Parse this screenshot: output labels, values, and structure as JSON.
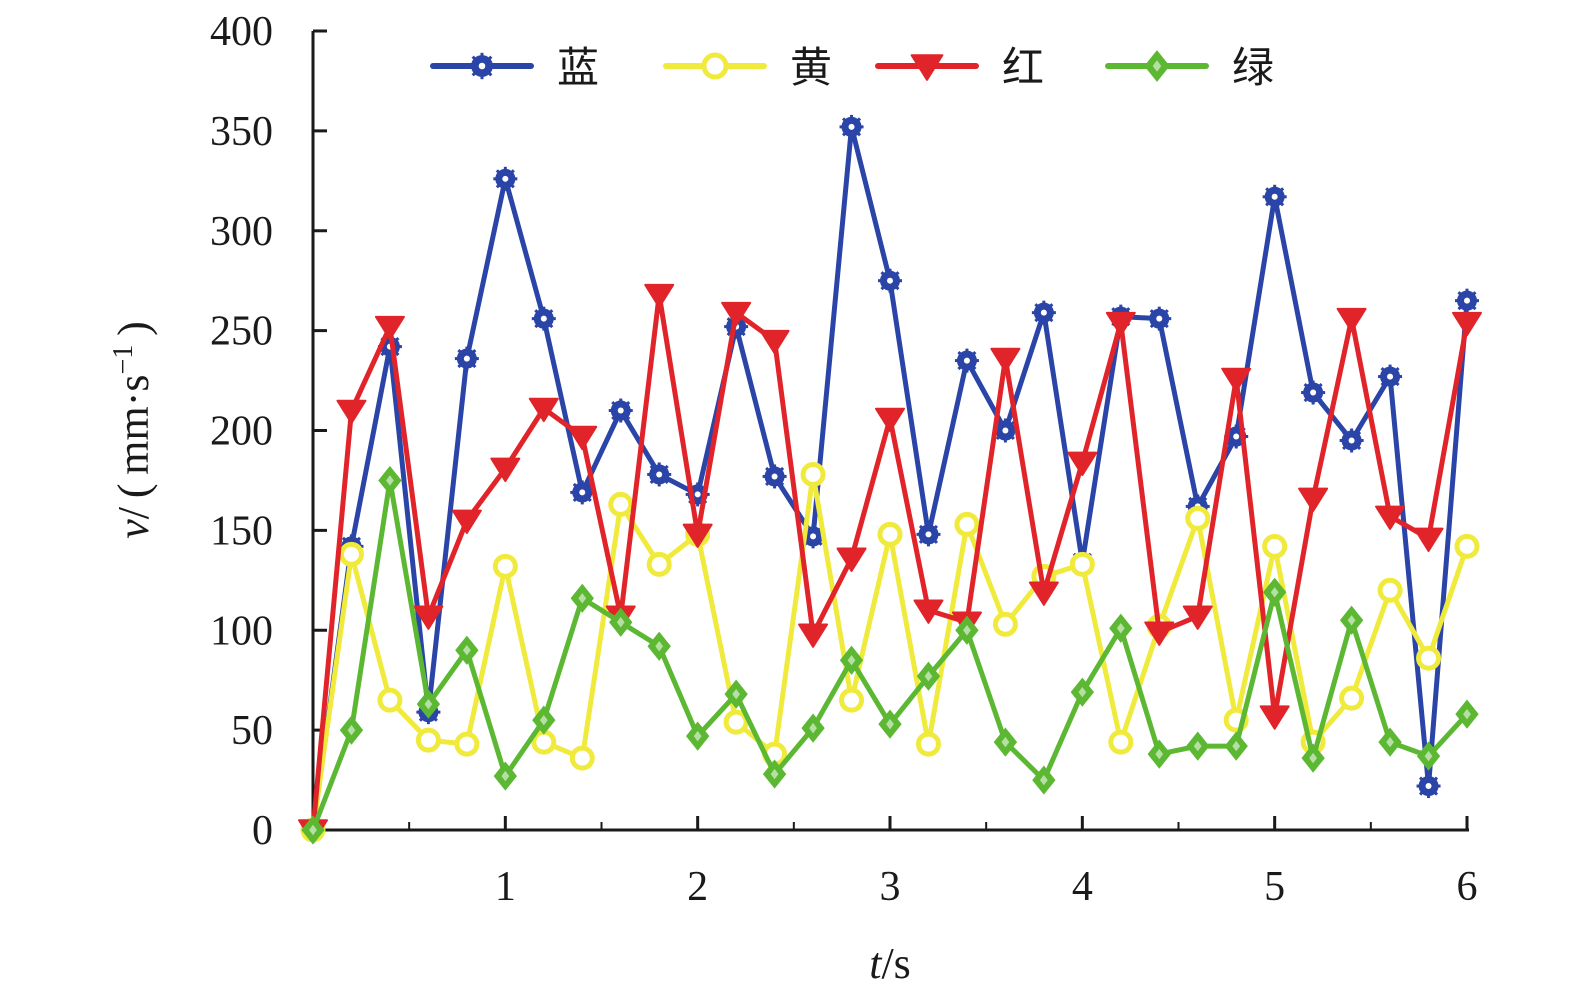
{
  "chart_data": {
    "type": "line",
    "xlabel_var": "t",
    "xlabel_unit": "/s",
    "ylabel_var": "v",
    "ylabel_unit_pre": "/ ( mm·s",
    "ylabel_unit_sup": "−1",
    "ylabel_unit_post": " )",
    "xlim": [
      0,
      6
    ],
    "ylim": [
      0,
      400
    ],
    "xticks": [
      1,
      2,
      3,
      4,
      5,
      6
    ],
    "yticks": [
      0,
      50,
      100,
      150,
      200,
      250,
      300,
      350,
      400
    ],
    "grid": false,
    "legend_position": "top",
    "x": [
      0,
      0.2,
      0.4,
      0.6,
      0.8,
      1.0,
      1.2,
      1.4,
      1.6,
      1.8,
      2.0,
      2.2,
      2.4,
      2.6,
      2.8,
      3.0,
      3.2,
      3.4,
      3.6,
      3.8,
      4.0,
      4.2,
      4.4,
      4.6,
      4.8,
      5.0,
      5.2,
      5.4,
      5.6,
      5.8,
      6.0
    ],
    "series": [
      {
        "name": "蓝",
        "color": "#2a44a8",
        "marker": "asterisk",
        "values": [
          0,
          142,
          242,
          59,
          236,
          326,
          256,
          169,
          210,
          178,
          168,
          252,
          177,
          147,
          352,
          275,
          148,
          235,
          200,
          259,
          134,
          257,
          256,
          162,
          197,
          317,
          219,
          195,
          227,
          22,
          265
        ]
      },
      {
        "name": "黄",
        "color": "#f0ea3c",
        "marker": "circle",
        "values": [
          0,
          138,
          65,
          45,
          43,
          132,
          44,
          36,
          163,
          133,
          148,
          54,
          38,
          178,
          65,
          148,
          43,
          153,
          103,
          127,
          133,
          44,
          102,
          156,
          55,
          142,
          44,
          66,
          120,
          86,
          142
        ]
      },
      {
        "name": "红",
        "color": "#e0242a",
        "marker": "triangle-down",
        "values": [
          0,
          210,
          252,
          107,
          155,
          181,
          211,
          197,
          107,
          268,
          148,
          259,
          245,
          98,
          136,
          206,
          110,
          104,
          236,
          119,
          184,
          254,
          99,
          107,
          226,
          57,
          166,
          256,
          157,
          146,
          254
        ]
      },
      {
        "name": "绿",
        "color": "#5cb833",
        "marker": "diamond",
        "values": [
          0,
          50,
          175,
          63,
          90,
          27,
          55,
          116,
          104,
          92,
          47,
          68,
          28,
          51,
          85,
          53,
          77,
          100,
          44,
          25,
          69,
          101,
          38,
          42,
          42,
          119,
          36,
          105,
          44,
          37,
          58
        ]
      }
    ]
  }
}
